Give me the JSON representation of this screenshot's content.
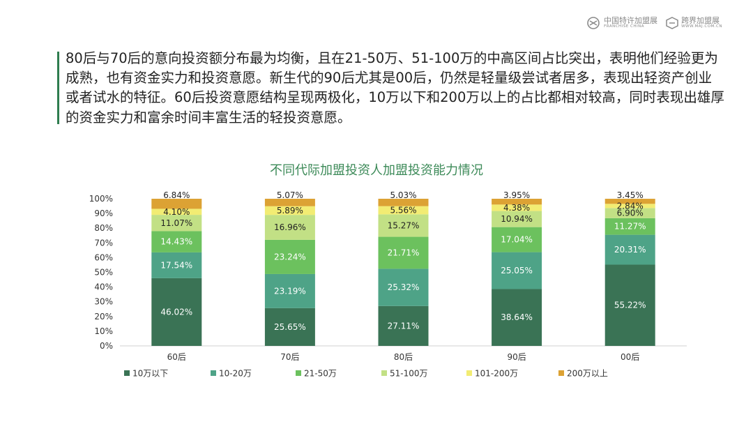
{
  "header": {
    "logo1_main": "中国特许加盟展",
    "logo1_sub": "FRANCHISE CHINA",
    "logo2_main": "跨界加盟展",
    "logo2_sub": "WWW.MAJ.COM.CN"
  },
  "paragraph": "80后与70后的意向投资额分布最为均衡，且在21-50万、51-100万的中高区间占比突出，表明他们经验更为成熟，也有资金实力和投资意愿。新生代的90后尤其是00后，仍然是轻量级尝试者居多，表现出轻资产创业或者试水的特征。60后投资意愿结构呈现两极化，10万以下和200万以上的占比都相对较高，同时表现出雄厚的资金实力和富余时间丰富生活的轻投资意愿。",
  "chart_data": {
    "type": "bar",
    "stacked": true,
    "title": "不同代际加盟投资人加盟投资能力情况",
    "categories": [
      "60后",
      "70后",
      "80后",
      "90后",
      "00后"
    ],
    "ylim": [
      0,
      100
    ],
    "yticks": [
      "0%",
      "10%",
      "20%",
      "30%",
      "40%",
      "50%",
      "60%",
      "70%",
      "80%",
      "90%",
      "100%"
    ],
    "xlabel": "",
    "ylabel": "",
    "legend_position": "bottom",
    "series": [
      {
        "name": "10万以下",
        "color": "#3a7355",
        "values": [
          46.02,
          25.65,
          27.11,
          38.64,
          55.22
        ],
        "labels": [
          "46.02%",
          "25.65%",
          "27.11%",
          "38.64%",
          "55.22%"
        ]
      },
      {
        "name": "10-20万",
        "color": "#4ea387",
        "values": [
          17.54,
          23.19,
          25.32,
          25.05,
          20.31
        ],
        "labels": [
          "17.54%",
          "23.19%",
          "25.32%",
          "25.05%",
          "20.31%"
        ]
      },
      {
        "name": "21-50万",
        "color": "#6cc15e",
        "values": [
          14.43,
          23.24,
          21.71,
          17.04,
          11.27
        ],
        "labels": [
          "14.43%",
          "23.24%",
          "21.71%",
          "17.04%",
          "11.27%"
        ]
      },
      {
        "name": "51-100万",
        "color": "#c2e085",
        "values": [
          11.07,
          16.96,
          15.27,
          10.94,
          6.9
        ],
        "labels": [
          "11.07%",
          "16.96%",
          "15.27%",
          "10.94%",
          "6.90%"
        ]
      },
      {
        "name": "101-200万",
        "color": "#f2ec73",
        "values": [
          4.1,
          5.89,
          5.56,
          4.38,
          2.84
        ],
        "labels": [
          "4.10%",
          "5.89%",
          "5.56%",
          "4.38%",
          "2.84%"
        ]
      },
      {
        "name": "200万以上",
        "color": "#dca234",
        "values": [
          6.84,
          5.07,
          5.03,
          3.95,
          3.45
        ],
        "labels": [
          "6.84%",
          "5.07%",
          "5.03%",
          "3.95%",
          "3.45%"
        ]
      }
    ]
  },
  "colors": {
    "accent_bar": "#2e7d4f",
    "title": "#3c8a58"
  }
}
